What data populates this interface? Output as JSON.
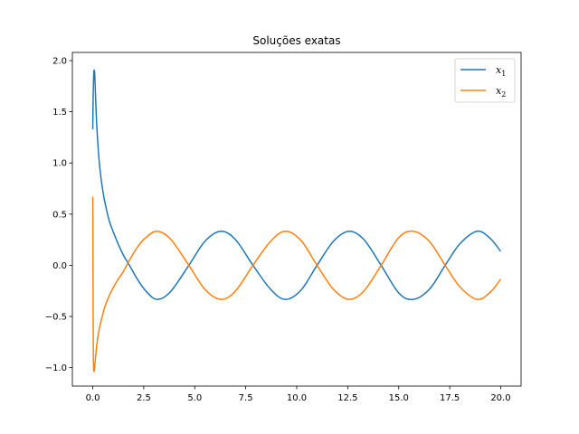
{
  "chart_data": {
    "type": "line",
    "title": "Soluções exatas",
    "xlabel": "",
    "ylabel": "",
    "xlim": [
      -1.0,
      21.0
    ],
    "ylim": [
      -1.18,
      2.08
    ],
    "x_ticks": [
      0.0,
      2.5,
      5.0,
      7.5,
      10.0,
      12.5,
      15.0,
      17.5,
      20.0
    ],
    "x_tick_labels": [
      "0.0",
      "2.5",
      "5.0",
      "7.5",
      "10.0",
      "12.5",
      "15.0",
      "17.5",
      "20.0"
    ],
    "y_ticks": [
      -1.0,
      -0.5,
      0.0,
      0.5,
      1.0,
      1.5,
      2.0
    ],
    "y_tick_labels": [
      "−1.0",
      "−0.5",
      "0.0",
      "0.5",
      "1.0",
      "1.5",
      "2.0"
    ],
    "grid": false,
    "legend_position": "top-right",
    "series": [
      {
        "name": "x1",
        "label_main": "x",
        "label_sub": "1",
        "color": "#1f77b4",
        "x": [
          0,
          0.02,
          0.05,
          0.08,
          0.1,
          0.15,
          0.2,
          0.3,
          0.4,
          0.5,
          0.6,
          0.8,
          1.0,
          1.2,
          1.5,
          1.8,
          2.2,
          2.6,
          3.1416,
          3.8,
          4.7124,
          5.5,
          6.2832,
          7.0,
          7.854,
          8.7,
          9.4248,
          10.2,
          10.9956,
          11.8,
          12.5664,
          13.3,
          14.1372,
          15.0,
          15.708,
          16.5,
          17.2788,
          18.0,
          18.8496,
          19.5,
          20.0
        ],
        "y": [
          1.33,
          1.65,
          1.88,
          1.9,
          1.85,
          1.58,
          1.35,
          1.05,
          0.86,
          0.72,
          0.61,
          0.44,
          0.33,
          0.23,
          0.1,
          0.0,
          -0.14,
          -0.25,
          -0.333,
          -0.26,
          0.0,
          0.235,
          0.333,
          0.25,
          0.0,
          -0.23,
          -0.333,
          -0.245,
          0.0,
          0.235,
          0.333,
          0.25,
          0.0,
          -0.27,
          -0.333,
          -0.235,
          0.0,
          0.21,
          0.333,
          0.26,
          0.136
        ]
      },
      {
        "name": "x2",
        "label_main": "x",
        "label_sub": "2",
        "color": "#ff7f0e",
        "x": [
          0,
          0.01,
          0.02,
          0.03,
          0.05,
          0.08,
          0.1,
          0.15,
          0.2,
          0.3,
          0.4,
          0.5,
          0.6,
          0.8,
          1.0,
          1.2,
          1.5,
          1.8,
          2.2,
          2.6,
          3.1416,
          3.8,
          4.7124,
          5.5,
          6.2832,
          7.0,
          7.854,
          8.7,
          9.4248,
          10.2,
          10.9956,
          11.8,
          12.5664,
          13.3,
          14.1372,
          15.0,
          15.708,
          16.5,
          17.2788,
          18.0,
          18.8496,
          19.5,
          20.0
        ],
        "y": [
          0.67,
          0.1,
          -0.55,
          -0.9,
          -1.03,
          -1.02,
          -0.98,
          -0.87,
          -0.77,
          -0.64,
          -0.55,
          -0.47,
          -0.4,
          -0.3,
          -0.22,
          -0.15,
          -0.06,
          0.05,
          0.18,
          0.27,
          0.333,
          0.26,
          0.0,
          -0.235,
          -0.333,
          -0.25,
          0.0,
          0.23,
          0.333,
          0.245,
          0.0,
          -0.235,
          -0.333,
          -0.25,
          0.0,
          0.27,
          0.333,
          0.235,
          0.0,
          -0.21,
          -0.333,
          -0.26,
          -0.136
        ]
      }
    ]
  }
}
